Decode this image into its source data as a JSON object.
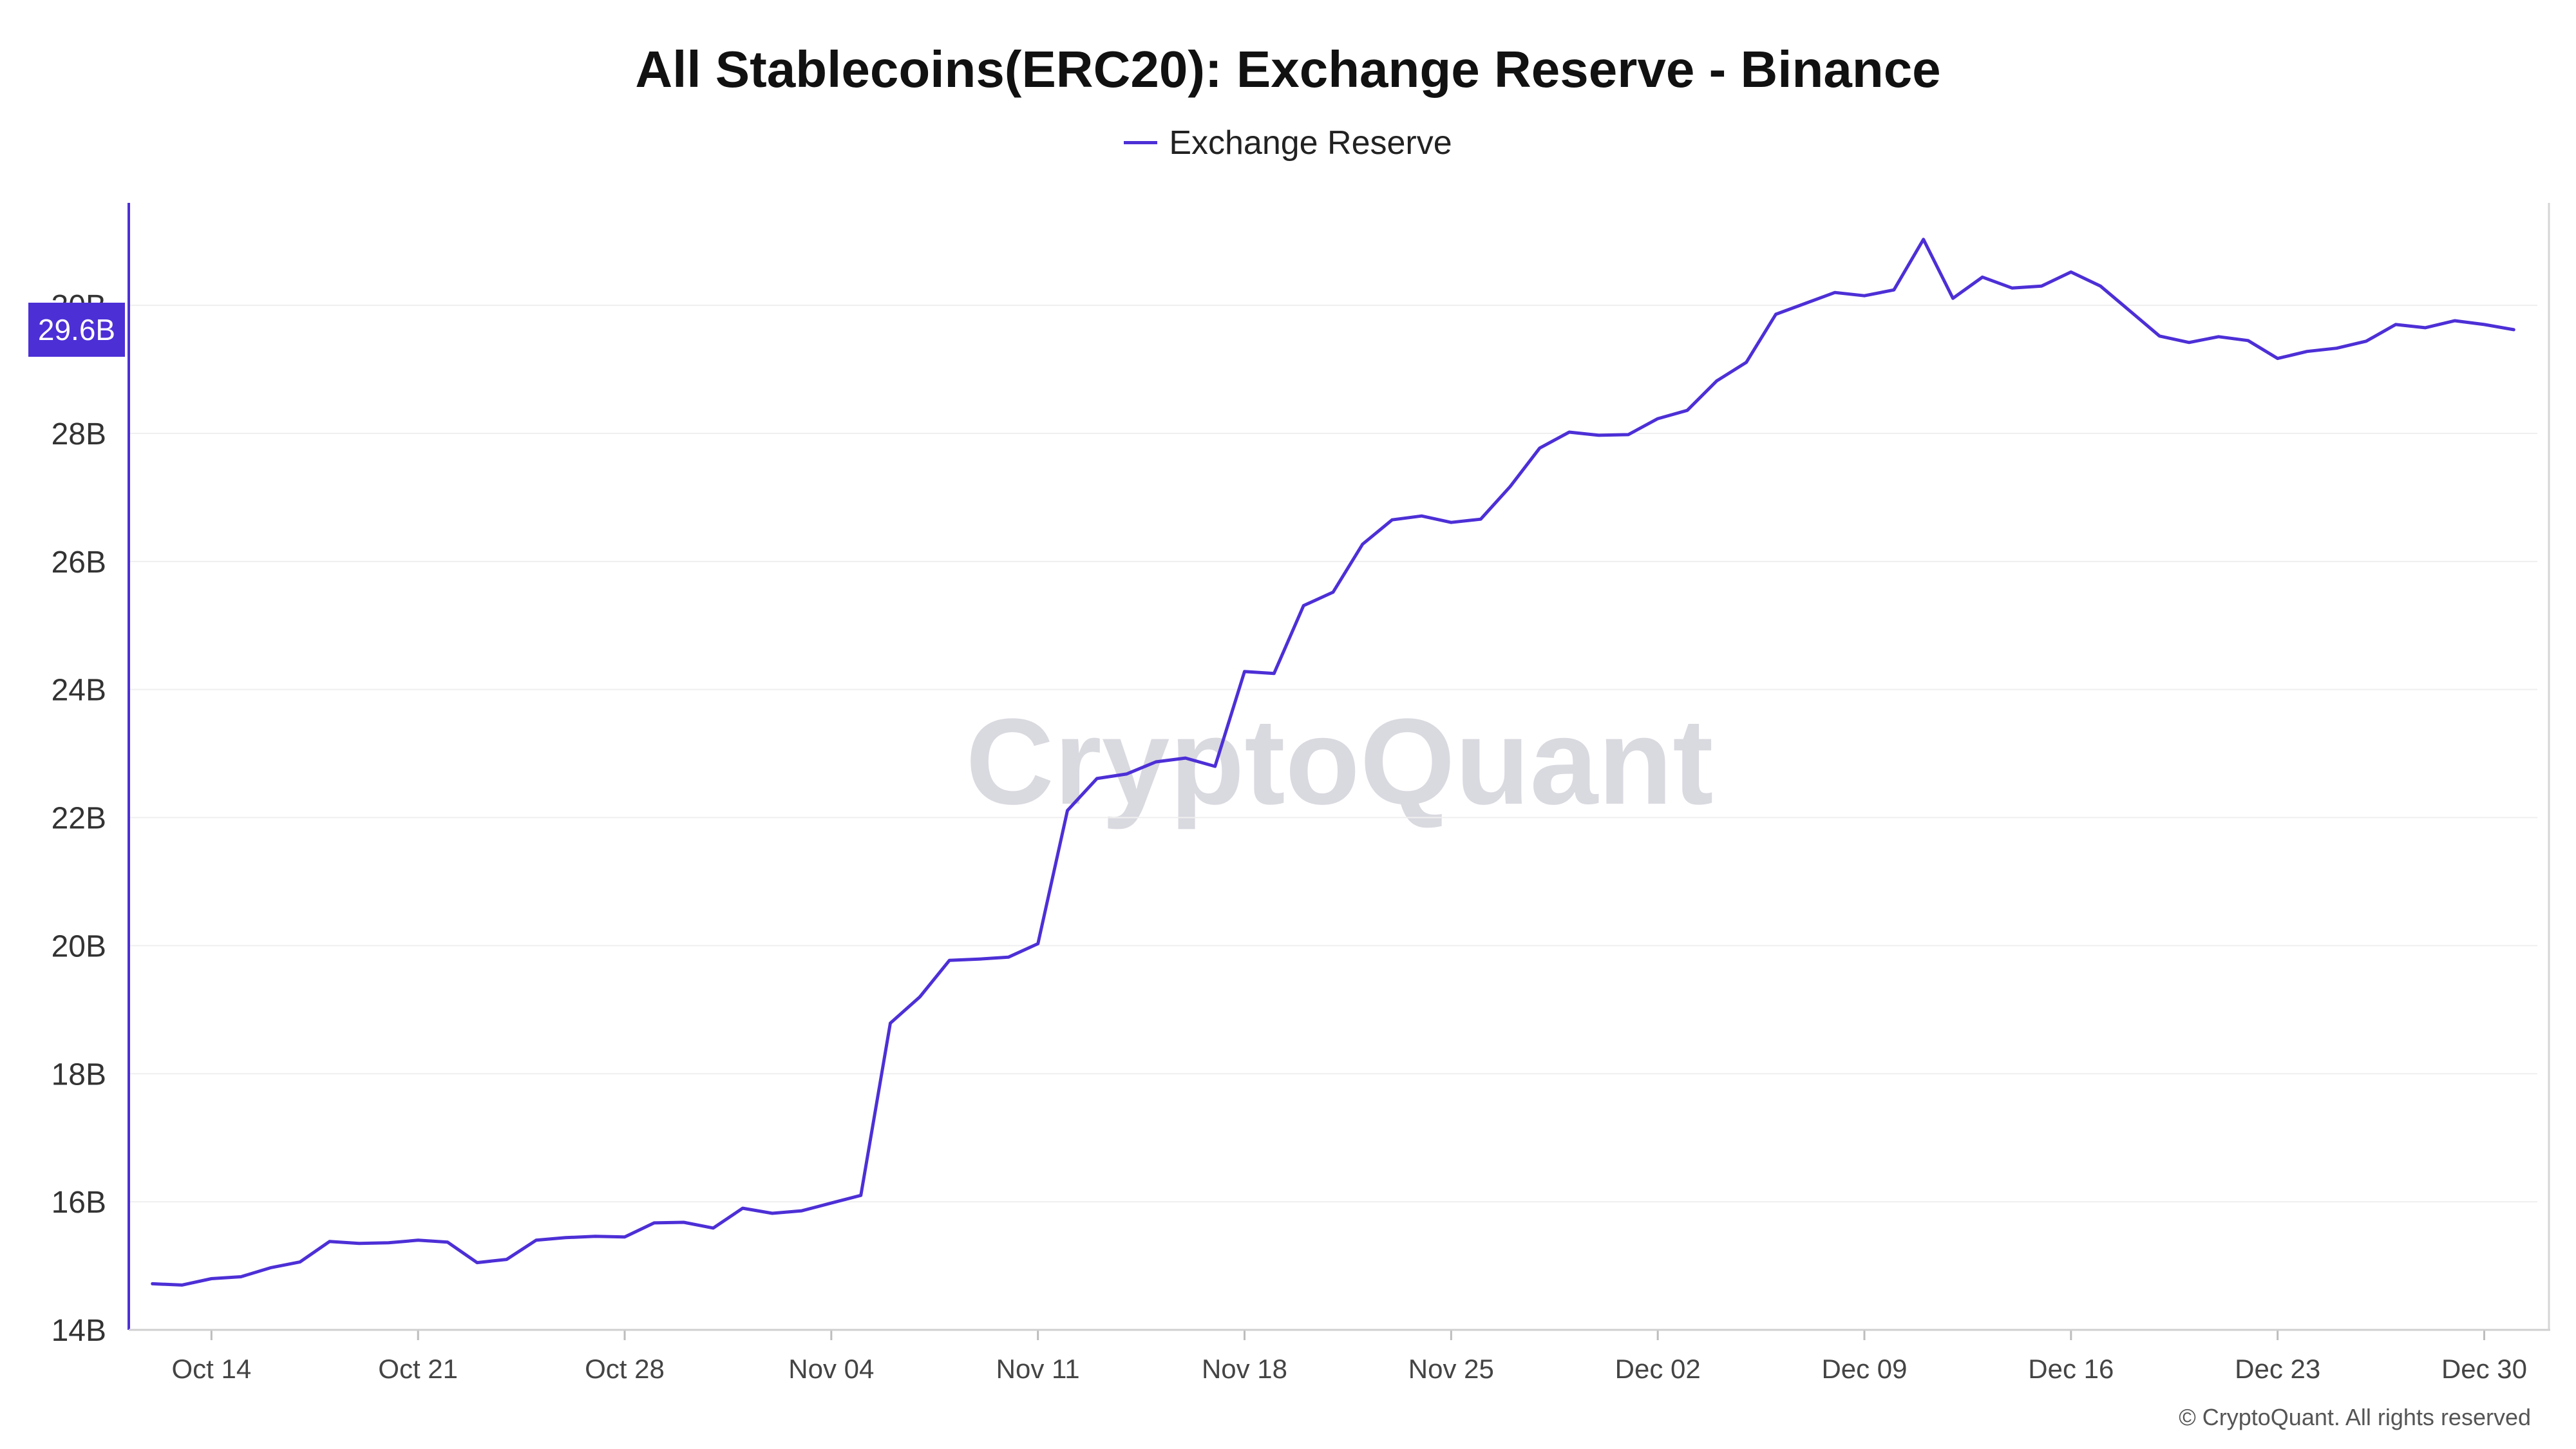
{
  "chart_data": {
    "type": "line",
    "title": "All Stablecoins(ERC20): Exchange Reserve - Binance",
    "xlabel": "",
    "ylabel": "",
    "ylim": [
      14,
      31.6
    ],
    "y_unit": "B",
    "y_ticks": [
      "14B",
      "16B",
      "18B",
      "20B",
      "22B",
      "24B",
      "26B",
      "28B",
      "30B"
    ],
    "y_tick_values": [
      14,
      16,
      18,
      20,
      22,
      24,
      26,
      28,
      30
    ],
    "x_ticks": [
      "Oct 14",
      "Oct 21",
      "Oct 28",
      "Nov 04",
      "Nov 11",
      "Nov 18",
      "Nov 25",
      "Dec 02",
      "Dec 09",
      "Dec 16",
      "Dec 23",
      "Dec 30"
    ],
    "x_tick_dates": [
      "2024-10-14",
      "2024-10-21",
      "2024-10-28",
      "2024-11-04",
      "2024-11-11",
      "2024-11-18",
      "2024-11-25",
      "2024-12-02",
      "2024-12-09",
      "2024-12-16",
      "2024-12-23",
      "2024-12-30"
    ],
    "grid": true,
    "legend_placement": "top-center",
    "current_value_label": "29.6B",
    "series": [
      {
        "name": "Exchange Reserve",
        "color": "#4d2fd6",
        "x": [
          "2024-10-12",
          "2024-10-13",
          "2024-10-14",
          "2024-10-15",
          "2024-10-16",
          "2024-10-17",
          "2024-10-18",
          "2024-10-19",
          "2024-10-20",
          "2024-10-21",
          "2024-10-22",
          "2024-10-23",
          "2024-10-24",
          "2024-10-25",
          "2024-10-26",
          "2024-10-27",
          "2024-10-28",
          "2024-10-29",
          "2024-10-30",
          "2024-10-31",
          "2024-11-01",
          "2024-11-02",
          "2024-11-03",
          "2024-11-04",
          "2024-11-05",
          "2024-11-06",
          "2024-11-07",
          "2024-11-08",
          "2024-11-09",
          "2024-11-10",
          "2024-11-11",
          "2024-11-12",
          "2024-11-13",
          "2024-11-14",
          "2024-11-15",
          "2024-11-16",
          "2024-11-17",
          "2024-11-18",
          "2024-11-19",
          "2024-11-20",
          "2024-11-21",
          "2024-11-22",
          "2024-11-23",
          "2024-11-24",
          "2024-11-25",
          "2024-11-26",
          "2024-11-27",
          "2024-11-28",
          "2024-11-29",
          "2024-11-30",
          "2024-12-01",
          "2024-12-02",
          "2024-12-03",
          "2024-12-04",
          "2024-12-05",
          "2024-12-06",
          "2024-12-07",
          "2024-12-08",
          "2024-12-09",
          "2024-12-10",
          "2024-12-11",
          "2024-12-12",
          "2024-12-13",
          "2024-12-14",
          "2024-12-15",
          "2024-12-16",
          "2024-12-17",
          "2024-12-18",
          "2024-12-19",
          "2024-12-20",
          "2024-12-21",
          "2024-12-22",
          "2024-12-23",
          "2024-12-24",
          "2024-12-25",
          "2024-12-26",
          "2024-12-27",
          "2024-12-28",
          "2024-12-29",
          "2024-12-30",
          "2024-12-31"
        ],
        "values": [
          14.72,
          14.7,
          14.8,
          14.83,
          14.97,
          15.06,
          15.38,
          15.35,
          15.36,
          15.4,
          15.37,
          15.05,
          15.1,
          15.4,
          15.44,
          15.46,
          15.45,
          15.67,
          15.68,
          15.59,
          15.9,
          15.82,
          15.86,
          15.98,
          16.1,
          18.79,
          19.2,
          19.77,
          19.79,
          19.82,
          20.03,
          22.11,
          22.61,
          22.68,
          22.87,
          22.93,
          22.8,
          24.28,
          24.25,
          25.31,
          25.52,
          26.27,
          26.65,
          26.71,
          26.61,
          26.66,
          27.17,
          27.77,
          28.02,
          27.97,
          27.98,
          28.23,
          28.36,
          28.82,
          29.11,
          29.86,
          30.03,
          30.2,
          30.15,
          30.24,
          31.03,
          30.11,
          30.44,
          30.27,
          30.3,
          30.52,
          30.3,
          29.91,
          29.52,
          29.42,
          29.51,
          29.45,
          29.17,
          29.28,
          29.33,
          29.44,
          29.7,
          29.65,
          29.76,
          29.7,
          29.62
        ]
      }
    ]
  },
  "footer": {
    "copyright": "© CryptoQuant. All rights reserved",
    "watermark": "CryptoQuant"
  }
}
